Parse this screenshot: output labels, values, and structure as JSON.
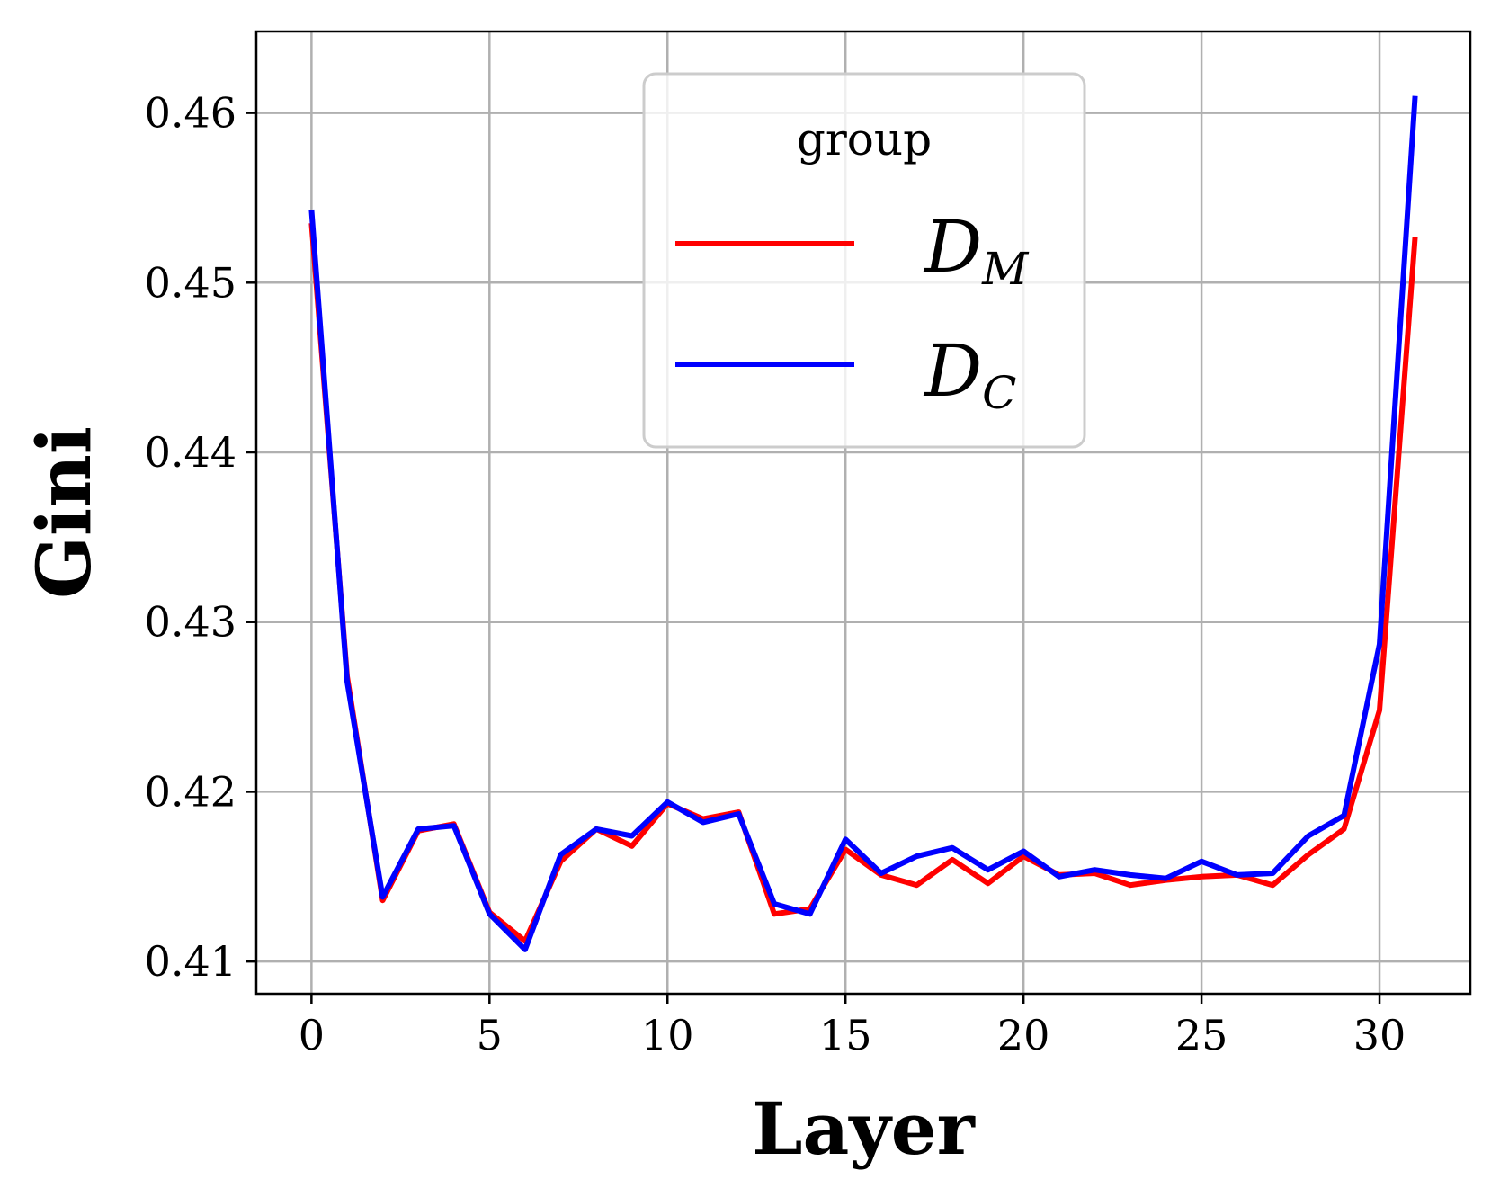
{
  "chart_data": {
    "type": "line",
    "title": "",
    "xlabel": "Layer",
    "ylabel": "Gini",
    "xlim": [
      -1.55,
      32.55
    ],
    "ylim": [
      0.4081,
      0.4648
    ],
    "xticks": [
      0,
      5,
      10,
      15,
      20,
      25,
      30
    ],
    "xtick_labels": [
      "0",
      "5",
      "10",
      "15",
      "20",
      "25",
      "30"
    ],
    "yticks": [
      0.41,
      0.42,
      0.43,
      0.44,
      0.45,
      0.46
    ],
    "ytick_labels": [
      "0.41",
      "0.42",
      "0.43",
      "0.44",
      "0.45",
      "0.46"
    ],
    "grid": true,
    "legend": {
      "title": "group",
      "placement": "top-center",
      "entries": [
        {
          "main": "D",
          "sub": "M"
        },
        {
          "main": "D",
          "sub": "C"
        }
      ]
    },
    "x": [
      0,
      1,
      2,
      3,
      4,
      5,
      6,
      7,
      8,
      9,
      10,
      11,
      12,
      13,
      14,
      15,
      16,
      17,
      18,
      19,
      20,
      21,
      22,
      23,
      24,
      25,
      26,
      27,
      28,
      29,
      30,
      31
    ],
    "series": [
      {
        "name": "D_M",
        "color": "#ff0000",
        "band_color": "#ff9999",
        "values": [
          0.4535,
          0.4268,
          0.4136,
          0.4177,
          0.4181,
          0.4129,
          0.4112,
          0.4159,
          0.4178,
          0.4168,
          0.4193,
          0.4184,
          0.4188,
          0.4128,
          0.4131,
          0.4166,
          0.4151,
          0.4145,
          0.416,
          0.4146,
          0.4162,
          0.4151,
          0.4152,
          0.4145,
          0.4148,
          0.415,
          0.4151,
          0.4145,
          0.4163,
          0.4178,
          0.4248,
          0.4527
        ]
      },
      {
        "name": "D_C",
        "color": "#0000ff",
        "band_color": "#9999ff",
        "values": [
          0.4543,
          0.4265,
          0.4138,
          0.4178,
          0.418,
          0.4128,
          0.4107,
          0.4163,
          0.4178,
          0.4174,
          0.4194,
          0.4182,
          0.4187,
          0.4134,
          0.4128,
          0.4172,
          0.4152,
          0.4162,
          0.4167,
          0.4154,
          0.4165,
          0.415,
          0.4154,
          0.4151,
          0.4149,
          0.4159,
          0.4151,
          0.4152,
          0.4174,
          0.4186,
          0.4287,
          0.461
        ]
      }
    ]
  }
}
